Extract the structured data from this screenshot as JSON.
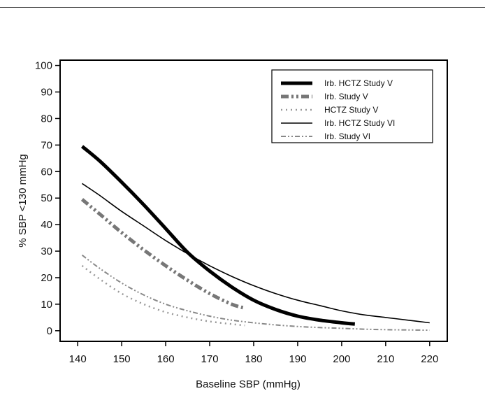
{
  "chart_data": {
    "type": "line",
    "title": "",
    "xlabel": "Baseline SBP (mmHg)",
    "ylabel": "% SBP <130 mmHg",
    "xlim": [
      136,
      224
    ],
    "ylim": [
      -4,
      102
    ],
    "xticks": [
      140,
      150,
      160,
      170,
      180,
      190,
      200,
      210,
      220
    ],
    "yticks": [
      0,
      10,
      20,
      30,
      40,
      50,
      60,
      70,
      80,
      90,
      100
    ],
    "grid": false,
    "legend_position": "top-right",
    "series": [
      {
        "name": "Irb. HCTZ Study V",
        "style": "thick-solid",
        "color": "#000000",
        "x": [
          141,
          145,
          150,
          155,
          160,
          165,
          170,
          175,
          180,
          185,
          190,
          195,
          200,
          203
        ],
        "y": [
          69.5,
          64,
          56,
          47.5,
          38.5,
          29.5,
          22.5,
          16.5,
          11.5,
          8,
          5.5,
          4,
          3,
          2.5
        ]
      },
      {
        "name": "Irb. Study V",
        "style": "thick-dashdot",
        "color": "#777777",
        "x": [
          141,
          145,
          150,
          155,
          160,
          165,
          170,
          175,
          178
        ],
        "y": [
          49.5,
          44,
          37,
          30.5,
          24.5,
          19,
          14,
          10,
          8.5
        ]
      },
      {
        "name": "HCTZ Study V",
        "style": "dotted",
        "color": "#999999",
        "x": [
          141,
          145,
          150,
          155,
          160,
          165,
          170,
          175,
          178
        ],
        "y": [
          24.5,
          19.5,
          14,
          10,
          7,
          5,
          3.5,
          2.5,
          2
        ]
      },
      {
        "name": "Irb. HCTZ Study VI",
        "style": "thin-solid",
        "color": "#000000",
        "x": [
          141,
          145,
          150,
          155,
          160,
          165,
          170,
          175,
          180,
          185,
          190,
          195,
          200,
          205,
          210,
          215,
          220
        ],
        "y": [
          55.5,
          51,
          45,
          39.5,
          34,
          29,
          24.5,
          20.5,
          17,
          14,
          11.5,
          9.5,
          7.5,
          6,
          5,
          4,
          3
        ]
      },
      {
        "name": "Irb. Study VI",
        "style": "thin-dashdot",
        "color": "#888888",
        "x": [
          141,
          145,
          150,
          155,
          160,
          165,
          170,
          175,
          180,
          185,
          190,
          195,
          200,
          205,
          210,
          215,
          220
        ],
        "y": [
          28.5,
          23.5,
          18,
          13.5,
          10,
          7.5,
          5.5,
          4,
          3,
          2.2,
          1.6,
          1.2,
          0.9,
          0.6,
          0.4,
          0.3,
          0.2
        ]
      }
    ]
  }
}
